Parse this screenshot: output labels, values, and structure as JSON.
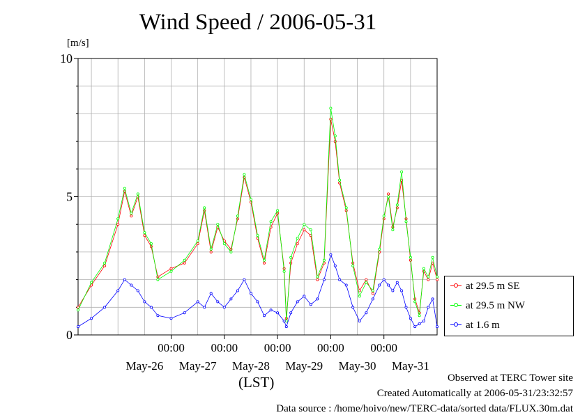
{
  "page": {
    "title": "Wind Speed / 2006-05-31",
    "unit_label": "[m/s]",
    "xaxis_label": "(LST)",
    "footer": {
      "observed": "Observed at TERC Tower site",
      "created": "Created Automatically at 2006-05-31/23:32:57",
      "source": "Data source : /home/hoivo/new/TERC-data/sorted  data/FLUX.30m.dat"
    }
  },
  "chart_data": {
    "type": "line",
    "title": "Wind Speed / 2006-05-31",
    "ylabel": "[m/s]",
    "xlabel": "(LST)",
    "x_start": "2006-05-25 06:00",
    "x_end": "2006-06-01 00:00",
    "ylim": [
      0,
      10
    ],
    "y_ticks": [
      0,
      5,
      10
    ],
    "x_time_ticks": [
      "00:00",
      "00:00",
      "00:00",
      "00:00",
      "00:00"
    ],
    "x_date_labels": [
      "May-26",
      "May-27",
      "May-28",
      "May-29",
      "May-30",
      "May-31"
    ],
    "grid": true,
    "legend_position": "right-bottom",
    "series": [
      {
        "name": "at 29.5 m SE",
        "color": "#ff0000",
        "points": [
          [
            "05-25 06:00",
            1.0
          ],
          [
            "05-25 12:00",
            1.8
          ],
          [
            "05-25 18:00",
            2.5
          ],
          [
            "05-26 00:00",
            4.0
          ],
          [
            "05-26 03:00",
            5.2
          ],
          [
            "05-26 06:00",
            4.3
          ],
          [
            "05-26 09:00",
            5.0
          ],
          [
            "05-26 12:00",
            3.6
          ],
          [
            "05-26 15:00",
            3.2
          ],
          [
            "05-26 18:00",
            2.1
          ],
          [
            "05-27 00:00",
            2.4
          ],
          [
            "05-27 06:00",
            2.6
          ],
          [
            "05-27 12:00",
            3.3
          ],
          [
            "05-27 15:00",
            4.5
          ],
          [
            "05-27 18:00",
            3.0
          ],
          [
            "05-27 21:00",
            3.9
          ],
          [
            "05-28 00:00",
            3.4
          ],
          [
            "05-28 03:00",
            3.1
          ],
          [
            "05-28 06:00",
            4.2
          ],
          [
            "05-28 09:00",
            5.7
          ],
          [
            "05-28 12:00",
            4.8
          ],
          [
            "05-28 15:00",
            3.5
          ],
          [
            "05-28 18:00",
            2.6
          ],
          [
            "05-28 21:00",
            3.9
          ],
          [
            "05-29 00:00",
            4.4
          ],
          [
            "05-29 03:00",
            2.4
          ],
          [
            "05-29 04:00",
            0.6
          ],
          [
            "05-29 06:00",
            2.6
          ],
          [
            "05-29 09:00",
            3.3
          ],
          [
            "05-29 12:00",
            3.8
          ],
          [
            "05-29 15:00",
            3.6
          ],
          [
            "05-29 18:00",
            2.0
          ],
          [
            "05-29 21:00",
            2.6
          ],
          [
            "05-30 00:00",
            7.8
          ],
          [
            "05-30 02:00",
            7.0
          ],
          [
            "05-30 04:00",
            5.5
          ],
          [
            "05-30 07:00",
            4.5
          ],
          [
            "05-30 10:00",
            2.6
          ],
          [
            "05-30 13:00",
            1.6
          ],
          [
            "05-30 16:00",
            2.0
          ],
          [
            "05-30 19:00",
            1.5
          ],
          [
            "05-30 22:00",
            3.0
          ],
          [
            "05-31 00:00",
            4.2
          ],
          [
            "05-31 02:00",
            5.1
          ],
          [
            "05-31 04:00",
            3.9
          ],
          [
            "05-31 06:00",
            4.6
          ],
          [
            "05-31 08:00",
            5.6
          ],
          [
            "05-31 10:00",
            4.2
          ],
          [
            "05-31 12:00",
            2.7
          ],
          [
            "05-31 14:00",
            1.3
          ],
          [
            "05-31 16:00",
            0.8
          ],
          [
            "05-31 18:00",
            2.3
          ],
          [
            "05-31 20:00",
            2.0
          ],
          [
            "05-31 22:00",
            2.6
          ],
          [
            "06-01 00:00",
            2.0
          ]
        ]
      },
      {
        "name": "at 29.5 m NW",
        "color": "#00ff00",
        "points": [
          [
            "05-25 06:00",
            0.9
          ],
          [
            "05-25 12:00",
            1.9
          ],
          [
            "05-25 18:00",
            2.6
          ],
          [
            "05-26 00:00",
            4.2
          ],
          [
            "05-26 03:00",
            5.3
          ],
          [
            "05-26 06:00",
            4.4
          ],
          [
            "05-26 09:00",
            5.1
          ],
          [
            "05-26 12:00",
            3.7
          ],
          [
            "05-26 15:00",
            3.3
          ],
          [
            "05-26 18:00",
            2.0
          ],
          [
            "05-27 00:00",
            2.3
          ],
          [
            "05-27 06:00",
            2.7
          ],
          [
            "05-27 12:00",
            3.4
          ],
          [
            "05-27 15:00",
            4.6
          ],
          [
            "05-27 18:00",
            3.1
          ],
          [
            "05-27 21:00",
            4.0
          ],
          [
            "05-28 00:00",
            3.3
          ],
          [
            "05-28 03:00",
            3.0
          ],
          [
            "05-28 06:00",
            4.3
          ],
          [
            "05-28 09:00",
            5.8
          ],
          [
            "05-28 12:00",
            4.9
          ],
          [
            "05-28 15:00",
            3.6
          ],
          [
            "05-28 18:00",
            2.7
          ],
          [
            "05-28 21:00",
            4.1
          ],
          [
            "05-29 00:00",
            4.5
          ],
          [
            "05-29 03:00",
            2.3
          ],
          [
            "05-29 04:00",
            0.5
          ],
          [
            "05-29 06:00",
            2.8
          ],
          [
            "05-29 09:00",
            3.5
          ],
          [
            "05-29 12:00",
            4.0
          ],
          [
            "05-29 15:00",
            3.8
          ],
          [
            "05-29 18:00",
            2.1
          ],
          [
            "05-29 21:00",
            2.7
          ],
          [
            "05-30 00:00",
            8.2
          ],
          [
            "05-30 02:00",
            7.2
          ],
          [
            "05-30 04:00",
            5.6
          ],
          [
            "05-30 07:00",
            4.6
          ],
          [
            "05-30 10:00",
            2.5
          ],
          [
            "05-30 13:00",
            1.4
          ],
          [
            "05-30 16:00",
            1.9
          ],
          [
            "05-30 19:00",
            1.6
          ],
          [
            "05-30 22:00",
            3.1
          ],
          [
            "05-31 00:00",
            4.3
          ],
          [
            "05-31 02:00",
            5.0
          ],
          [
            "05-31 04:00",
            3.8
          ],
          [
            "05-31 06:00",
            4.7
          ],
          [
            "05-31 08:00",
            5.9
          ],
          [
            "05-31 10:00",
            4.1
          ],
          [
            "05-31 12:00",
            2.8
          ],
          [
            "05-31 14:00",
            1.2
          ],
          [
            "05-31 16:00",
            0.7
          ],
          [
            "05-31 18:00",
            2.4
          ],
          [
            "05-31 20:00",
            2.1
          ],
          [
            "05-31 22:00",
            2.8
          ],
          [
            "06-01 00:00",
            2.1
          ]
        ]
      },
      {
        "name": "at 1.6 m",
        "color": "#0000ff",
        "points": [
          [
            "05-25 06:00",
            0.3
          ],
          [
            "05-25 12:00",
            0.6
          ],
          [
            "05-25 18:00",
            1.0
          ],
          [
            "05-26 00:00",
            1.6
          ],
          [
            "05-26 03:00",
            2.0
          ],
          [
            "05-26 06:00",
            1.8
          ],
          [
            "05-26 09:00",
            1.6
          ],
          [
            "05-26 12:00",
            1.2
          ],
          [
            "05-26 15:00",
            1.0
          ],
          [
            "05-26 18:00",
            0.7
          ],
          [
            "05-27 00:00",
            0.6
          ],
          [
            "05-27 06:00",
            0.8
          ],
          [
            "05-27 12:00",
            1.2
          ],
          [
            "05-27 15:00",
            1.0
          ],
          [
            "05-27 18:00",
            1.5
          ],
          [
            "05-27 21:00",
            1.2
          ],
          [
            "05-28 00:00",
            1.0
          ],
          [
            "05-28 03:00",
            1.3
          ],
          [
            "05-28 06:00",
            1.6
          ],
          [
            "05-28 09:00",
            2.0
          ],
          [
            "05-28 12:00",
            1.5
          ],
          [
            "05-28 15:00",
            1.2
          ],
          [
            "05-28 18:00",
            0.7
          ],
          [
            "05-28 21:00",
            0.9
          ],
          [
            "05-29 00:00",
            0.8
          ],
          [
            "05-29 03:00",
            0.5
          ],
          [
            "05-29 04:00",
            0.3
          ],
          [
            "05-29 06:00",
            0.8
          ],
          [
            "05-29 09:00",
            1.2
          ],
          [
            "05-29 12:00",
            1.4
          ],
          [
            "05-29 15:00",
            1.1
          ],
          [
            "05-29 18:00",
            1.3
          ],
          [
            "05-29 21:00",
            2.0
          ],
          [
            "05-30 00:00",
            2.9
          ],
          [
            "05-30 02:00",
            2.5
          ],
          [
            "05-30 04:00",
            2.0
          ],
          [
            "05-30 07:00",
            1.8
          ],
          [
            "05-30 10:00",
            1.0
          ],
          [
            "05-30 13:00",
            0.5
          ],
          [
            "05-30 16:00",
            0.8
          ],
          [
            "05-30 19:00",
            1.3
          ],
          [
            "05-30 22:00",
            1.8
          ],
          [
            "05-31 00:00",
            2.0
          ],
          [
            "05-31 02:00",
            1.8
          ],
          [
            "05-31 04:00",
            1.6
          ],
          [
            "05-31 06:00",
            1.9
          ],
          [
            "05-31 08:00",
            1.6
          ],
          [
            "05-31 10:00",
            1.0
          ],
          [
            "05-31 12:00",
            0.6
          ],
          [
            "05-31 14:00",
            0.3
          ],
          [
            "05-31 16:00",
            0.4
          ],
          [
            "05-31 18:00",
            0.5
          ],
          [
            "05-31 20:00",
            1.0
          ],
          [
            "05-31 22:00",
            1.3
          ],
          [
            "06-01 00:00",
            0.3
          ]
        ]
      }
    ]
  }
}
